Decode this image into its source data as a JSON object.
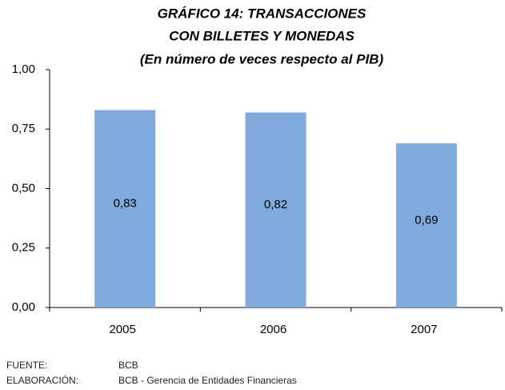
{
  "chart_data": {
    "type": "bar",
    "title": [
      "GRÁFICO 14: TRANSACCIONES",
      "CON BILLETES Y MONEDAS",
      "(En número de veces respecto al PIB)"
    ],
    "categories": [
      "2005",
      "2006",
      "2007"
    ],
    "values": [
      0.83,
      0.82,
      0.69
    ],
    "value_labels": [
      "0,83",
      "0,82",
      "0,69"
    ],
    "color": "#7faadc",
    "ylim": [
      0,
      1
    ],
    "yticks": [
      {
        "value": 0,
        "label": "0,00"
      },
      {
        "value": 0.25,
        "label": "0,25"
      },
      {
        "value": 0.5,
        "label": "0,50"
      },
      {
        "value": 0.75,
        "label": "0,75"
      },
      {
        "value": 1,
        "label": "1,00"
      }
    ],
    "grid": false,
    "notes": [
      {
        "label": "FUENTE:",
        "text": "BCB"
      },
      {
        "label": "ELABORACIÓN:",
        "text": "BCB - Gerencia de Entidades Financieras"
      }
    ]
  }
}
